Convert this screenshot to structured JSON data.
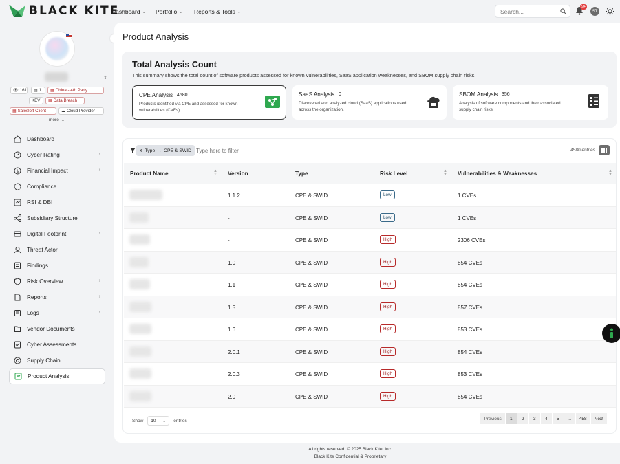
{
  "brand": {
    "name": "BLACK KITE"
  },
  "nav": {
    "items": [
      "Dashboard",
      "Portfolio",
      "Reports & Tools"
    ]
  },
  "search": {
    "placeholder": "Search..."
  },
  "notifications": {
    "badge": "9+"
  },
  "user": {
    "initials": "ST"
  },
  "org": {
    "tags": {
      "count1": "161",
      "count2": "1",
      "country": "China - 4th Party L...",
      "kev": "KEV",
      "breach": "Data Breach",
      "salesloft": "Salesloft Client",
      "cloud": "Cloud Provider"
    },
    "more": "more ..."
  },
  "sidebar": {
    "items": [
      {
        "label": "Dashboard",
        "icon": "home-icon"
      },
      {
        "label": "Cyber Rating",
        "icon": "rating-icon"
      },
      {
        "label": "Financial Impact",
        "icon": "money-icon"
      },
      {
        "label": "Compliance",
        "icon": "compliance-icon"
      },
      {
        "label": "RSI & DBI",
        "icon": "rsi-icon"
      },
      {
        "label": "Subsidiary Structure",
        "icon": "hierarchy-icon"
      },
      {
        "label": "Digital Footprint",
        "icon": "footprint-icon"
      },
      {
        "label": "Threat Actor",
        "icon": "actor-icon"
      },
      {
        "label": "Findings",
        "icon": "findings-icon"
      },
      {
        "label": "Risk Overview",
        "icon": "shield-icon"
      },
      {
        "label": "Reports",
        "icon": "report-icon"
      },
      {
        "label": "Logs",
        "icon": "logs-icon"
      },
      {
        "label": "Vendor Documents",
        "icon": "documents-icon"
      },
      {
        "label": "Cyber Assessments",
        "icon": "assessment-icon"
      },
      {
        "label": "Supply Chain",
        "icon": "supply-chain-icon"
      },
      {
        "label": "Product Analysis",
        "icon": "product-icon"
      }
    ]
  },
  "page": {
    "title": "Product Analysis"
  },
  "summary": {
    "title": "Total Analysis Count",
    "subtitle": "This summary shows the total count of software products assessed for known vulnerabilities, SaaS application weaknesses, and SBOM supply chain risks.",
    "cards": [
      {
        "title": "CPE Analysis",
        "count": "4580",
        "desc": "Products identified via CPE and assessed for known vulnerabilities (CVEs)"
      },
      {
        "title": "SaaS Analysis",
        "count": "0",
        "desc": "Discovered and analyzed cloud (SaaS) applications used across the organization."
      },
      {
        "title": "SBOM Analysis",
        "count": "356",
        "desc": "Analysis of software components and their associated supply chain risks."
      }
    ]
  },
  "filter": {
    "chip_x": "x",
    "chip_field": "Type",
    "chip_arrow": "→",
    "chip_value": "CPE & SWID",
    "placeholder": "Type here to filter",
    "entries": "4580 entries"
  },
  "table": {
    "columns": [
      "Product Name",
      "Version",
      "Type",
      "Risk Level",
      "Vulnerabilities & Weaknesses"
    ],
    "rows": [
      {
        "version": "1.1.2",
        "type": "CPE & SWID",
        "risk": "Low",
        "vulns": "1 CVEs"
      },
      {
        "version": "-",
        "type": "CPE & SWID",
        "risk": "Low",
        "vulns": "1 CVEs"
      },
      {
        "version": "-",
        "type": "CPE & SWID",
        "risk": "High",
        "vulns": "2306 CVEs"
      },
      {
        "version": "1.0",
        "type": "CPE & SWID",
        "risk": "High",
        "vulns": "854 CVEs"
      },
      {
        "version": "1.1",
        "type": "CPE & SWID",
        "risk": "High",
        "vulns": "854 CVEs"
      },
      {
        "version": "1.5",
        "type": "CPE & SWID",
        "risk": "High",
        "vulns": "857 CVEs"
      },
      {
        "version": "1.6",
        "type": "CPE & SWID",
        "risk": "High",
        "vulns": "853 CVEs"
      },
      {
        "version": "2.0.1",
        "type": "CPE & SWID",
        "risk": "High",
        "vulns": "854 CVEs"
      },
      {
        "version": "2.0.3",
        "type": "CPE & SWID",
        "risk": "High",
        "vulns": "853 CVEs"
      },
      {
        "version": "2.0",
        "type": "CPE & SWID",
        "risk": "High",
        "vulns": "854 CVEs"
      }
    ]
  },
  "pagination": {
    "show_label": "Show",
    "page_size": "10",
    "entries_label": "entries",
    "previous": "Previous",
    "pages": [
      "1",
      "2",
      "3",
      "4",
      "5",
      "...",
      "458"
    ],
    "next": "Next"
  },
  "footer": {
    "line1": "All rights reserved. © 2025 Black Kite, Inc.",
    "line2": "Black Kite Confidential & Proprietary"
  },
  "colors": {
    "accent_green": "#2fa84f",
    "risk_high": "#b72a2a",
    "risk_low": "#3b6b8a"
  }
}
